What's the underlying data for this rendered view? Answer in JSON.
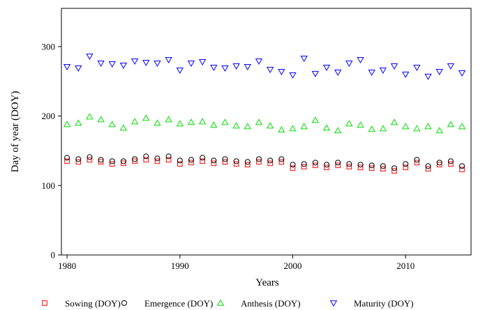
{
  "chart_data": {
    "type": "scatter",
    "title": "",
    "xlabel": "Years",
    "ylabel": "Day of year (DOY)",
    "xlim": [
      1979.5,
      2015.8
    ],
    "ylim": [
      0,
      355
    ],
    "xticks": [
      1980,
      1990,
      2000,
      2010
    ],
    "yticks": [
      0,
      100,
      200,
      300
    ],
    "grid": false,
    "legend_position": "bottom",
    "x": [
      1980,
      1981,
      1982,
      1983,
      1984,
      1985,
      1986,
      1987,
      1988,
      1989,
      1990,
      1991,
      1992,
      1993,
      1994,
      1995,
      1996,
      1997,
      1998,
      1999,
      2000,
      2001,
      2002,
      2003,
      2004,
      2005,
      2006,
      2007,
      2008,
      2009,
      2010,
      2011,
      2012,
      2013,
      2014,
      2015
    ],
    "series": [
      {
        "name": "Sowing (DOY)",
        "marker": "square",
        "color": "#ff0000",
        "values": [
          135,
          134,
          137,
          134,
          131,
          132,
          135,
          137,
          135,
          137,
          131,
          133,
          135,
          132,
          134,
          131,
          130,
          134,
          132,
          134,
          125,
          127,
          129,
          126,
          129,
          127,
          126,
          125,
          124,
          121,
          126,
          133,
          124,
          130,
          131,
          123
        ]
      },
      {
        "name": "Emergence (DOY)",
        "marker": "circle",
        "color": "#000000",
        "values": [
          140,
          138,
          141,
          137,
          135,
          135,
          138,
          142,
          139,
          142,
          136,
          137,
          140,
          136,
          138,
          135,
          134,
          138,
          136,
          138,
          130,
          131,
          133,
          130,
          133,
          131,
          130,
          129,
          128,
          125,
          131,
          137,
          128,
          133,
          135,
          128
        ]
      },
      {
        "name": "Anthesis (DOY)",
        "marker": "triangle-up",
        "color": "#00dd00",
        "values": [
          188,
          190,
          199,
          195,
          188,
          183,
          192,
          197,
          190,
          195,
          189,
          191,
          192,
          187,
          191,
          186,
          185,
          191,
          186,
          180,
          182,
          185,
          194,
          183,
          179,
          189,
          187,
          181,
          182,
          191,
          185,
          182,
          185,
          179,
          188,
          185
        ]
      },
      {
        "name": "Maturity (DOY)",
        "marker": "triangle-down",
        "color": "#0000ff",
        "values": [
          271,
          269,
          286,
          276,
          275,
          273,
          279,
          277,
          276,
          281,
          266,
          276,
          278,
          270,
          269,
          272,
          271,
          279,
          267,
          264,
          259,
          283,
          261,
          270,
          263,
          276,
          281,
          263,
          266,
          272,
          260,
          270,
          257,
          264,
          272,
          262
        ]
      }
    ]
  }
}
